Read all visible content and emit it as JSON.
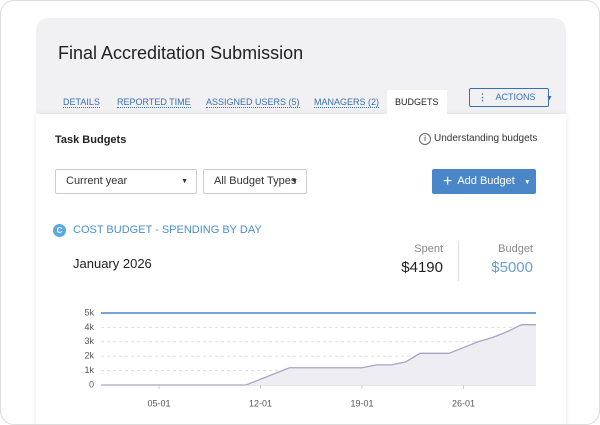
{
  "header": {
    "title": "Final Accreditation Submission",
    "tabs": [
      {
        "label": "DETAILS"
      },
      {
        "label": "REPORTED TIME"
      },
      {
        "label": "ASSIGNED USERS (5)"
      },
      {
        "label": "MANAGERS (2)"
      },
      {
        "label": "BUDGETS",
        "active": true
      }
    ],
    "actions_button": "ACTIONS"
  },
  "section": {
    "title": "Task Budgets",
    "help_link": "Understanding budgets",
    "filters": [
      "Current year",
      "All Budget Types"
    ],
    "add_button": "Add Budget"
  },
  "card": {
    "badge": "C",
    "title": "COST BUDGET - SPENDING BY DAY",
    "period": "January 2026",
    "spent_label": "Spent",
    "spent_value": "$4190",
    "budget_label": "Budget",
    "budget_value": "$5000"
  },
  "chart_data": {
    "type": "area",
    "x": [
      1,
      2,
      3,
      4,
      5,
      6,
      7,
      8,
      9,
      10,
      11,
      12,
      13,
      14,
      15,
      16,
      17,
      18,
      19,
      20,
      21,
      22,
      23,
      24,
      25,
      26,
      27,
      28,
      29,
      30,
      31
    ],
    "series": [
      {
        "color": "#a9a6c4",
        "values": [
          0,
          0,
          0,
          0,
          0,
          0,
          0,
          0,
          0,
          0,
          0,
          400,
          800,
          1200,
          1200,
          1200,
          1200,
          1200,
          1200,
          1400,
          1400,
          1600,
          2200,
          2200,
          2200,
          2600,
          3000,
          3300,
          3700,
          4190,
          4190
        ]
      }
    ],
    "budget_line": 5000,
    "budget_color": "#4a86c8",
    "xlim": [
      1,
      31
    ],
    "xticks": [
      {
        "value": 5,
        "label": "05-01"
      },
      {
        "value": 12,
        "label": "12-01"
      },
      {
        "value": 19,
        "label": "19-01"
      },
      {
        "value": 26,
        "label": "26-01"
      }
    ],
    "ylim": [
      0,
      5000
    ],
    "yticks": [
      0,
      {
        "value": 1000,
        "label": "1k"
      },
      {
        "value": 2000,
        "label": "2k"
      },
      {
        "value": 3000,
        "label": "3k"
      },
      {
        "value": 4000,
        "label": "4k"
      },
      {
        "value": 5000,
        "label": "5k"
      }
    ],
    "grid": true
  }
}
